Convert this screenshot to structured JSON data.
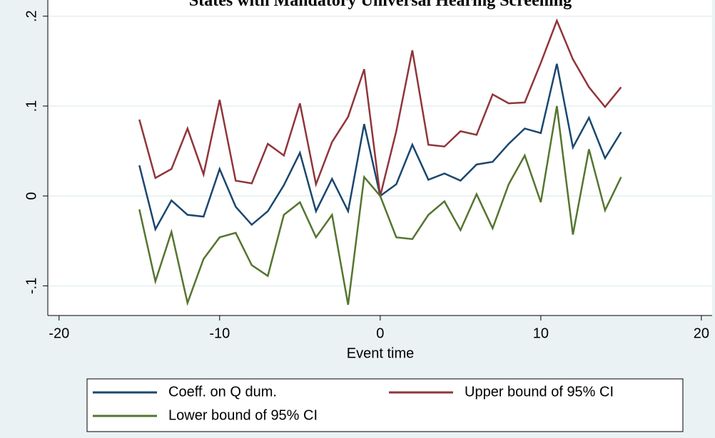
{
  "chart_data": {
    "type": "line",
    "title": "States with Mandatory Universal Hearing Screening",
    "x_label": "Event time",
    "x": [
      -15,
      -14,
      -13,
      -12,
      -11,
      -10,
      -9,
      -8,
      -7,
      -6,
      -5,
      -4,
      -3,
      -2,
      -1,
      0,
      1,
      2,
      3,
      4,
      5,
      6,
      7,
      8,
      9,
      10,
      11,
      12,
      13,
      14,
      15
    ],
    "series": [
      {
        "name": "Coeff. on Q dum.",
        "color": "#1a476f",
        "values": [
          0.034,
          -0.037,
          -0.005,
          -0.021,
          -0.023,
          0.03,
          -0.012,
          -0.032,
          -0.017,
          0.012,
          0.048,
          -0.017,
          0.019,
          -0.017,
          0.08,
          0,
          0.013,
          0.057,
          0.018,
          0.025,
          0.017,
          0.035,
          0.038,
          0.058,
          0.075,
          0.07,
          0.147,
          0.054,
          0.087,
          0.042,
          0.071
        ]
      },
      {
        "name": "Upper bound of 95% CI",
        "color": "#90353b",
        "values": [
          0.085,
          0.02,
          0.03,
          0.075,
          0.024,
          0.107,
          0.017,
          0.014,
          0.058,
          0.045,
          0.103,
          0.013,
          0.06,
          0.088,
          0.141,
          0,
          0.072,
          0.162,
          0.057,
          0.055,
          0.072,
          0.068,
          0.113,
          0.103,
          0.104,
          0.148,
          0.195,
          0.152,
          0.121,
          0.099,
          0.121
        ]
      },
      {
        "name": "Lower bound of 95% CI",
        "color": "#55752f",
        "values": [
          -0.015,
          -0.095,
          -0.04,
          -0.119,
          -0.07,
          -0.046,
          -0.041,
          -0.077,
          -0.089,
          -0.021,
          -0.007,
          -0.046,
          -0.021,
          -0.121,
          0.021,
          0,
          -0.046,
          -0.048,
          -0.021,
          -0.006,
          -0.038,
          0.002,
          -0.036,
          0.013,
          0.045,
          -0.007,
          0.1,
          -0.043,
          0.052,
          -0.016,
          0.021
        ]
      }
    ],
    "xlim": [
      -20.7,
      20.67
    ],
    "xticks": [
      -20,
      -10,
      0,
      10,
      20
    ],
    "ylim": [
      -0.133,
      0.218
    ],
    "yticks": [
      {
        "value": -0.1,
        "label": "-.1"
      },
      0,
      {
        "value": 0.1,
        "label": ".1"
      },
      {
        "value": 0.2,
        "label": ".2"
      }
    ],
    "grid": true
  }
}
